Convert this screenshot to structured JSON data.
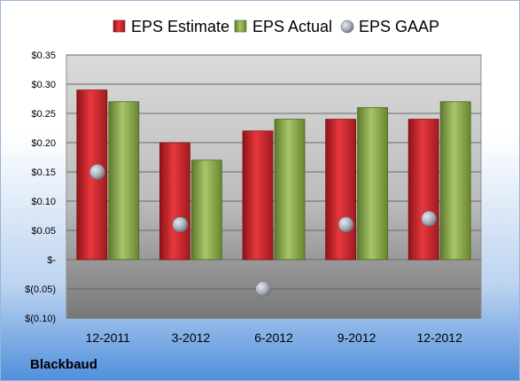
{
  "chart_data": {
    "type": "bar",
    "categories": [
      "12-2011",
      "3-2012",
      "6-2012",
      "9-2012",
      "12-2012"
    ],
    "series": [
      {
        "name": "EPS Estimate",
        "kind": "bar",
        "values": [
          0.29,
          0.2,
          0.22,
          0.24,
          0.24
        ]
      },
      {
        "name": "EPS Actual",
        "kind": "bar",
        "values": [
          0.27,
          0.17,
          0.24,
          0.26,
          0.27
        ]
      },
      {
        "name": "EPS GAAP",
        "kind": "scatter",
        "values": [
          0.15,
          0.06,
          -0.05,
          0.06,
          0.07
        ]
      }
    ],
    "ylim": [
      -0.1,
      0.35
    ],
    "yticks": [
      0.35,
      0.3,
      0.25,
      0.2,
      0.15,
      0.1,
      0.05,
      0,
      -0.05,
      -0.1
    ],
    "ytick_labels": [
      "$0.35",
      "$0.30",
      "$0.25",
      "$0.20",
      "$0.15",
      "$0.10",
      "$0.05",
      "$-",
      "$(0.05)",
      "$(0.10)"
    ],
    "grid": true,
    "legend": "top",
    "colors": {
      "estimate": "#c8262c",
      "actual": "#8aa84b",
      "gaap": "#a9aeb8"
    },
    "footer_label": "Blackbaud"
  }
}
